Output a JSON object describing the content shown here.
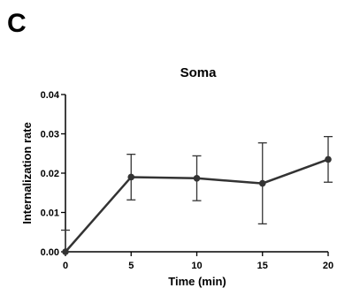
{
  "panel_label": "C",
  "chart_data": {
    "type": "line",
    "title": "Soma",
    "xlabel": "Time (min)",
    "ylabel": "Internalization rate",
    "x": [
      0,
      5,
      10,
      15,
      20
    ],
    "xlim": [
      0,
      20
    ],
    "ylim": [
      0,
      0.04
    ],
    "x_ticks": [
      "0",
      "5",
      "10",
      "15",
      "20"
    ],
    "y_ticks": [
      "0.00",
      "0.01",
      "0.02",
      "0.03",
      "0.04"
    ],
    "grid": false,
    "series": [
      {
        "values": [
          0.0,
          0.019,
          0.0187,
          0.0174,
          0.0235
        ],
        "error": [
          0.0055,
          0.0058,
          0.0057,
          0.0103,
          0.0058
        ],
        "color": "#333333"
      }
    ]
  }
}
